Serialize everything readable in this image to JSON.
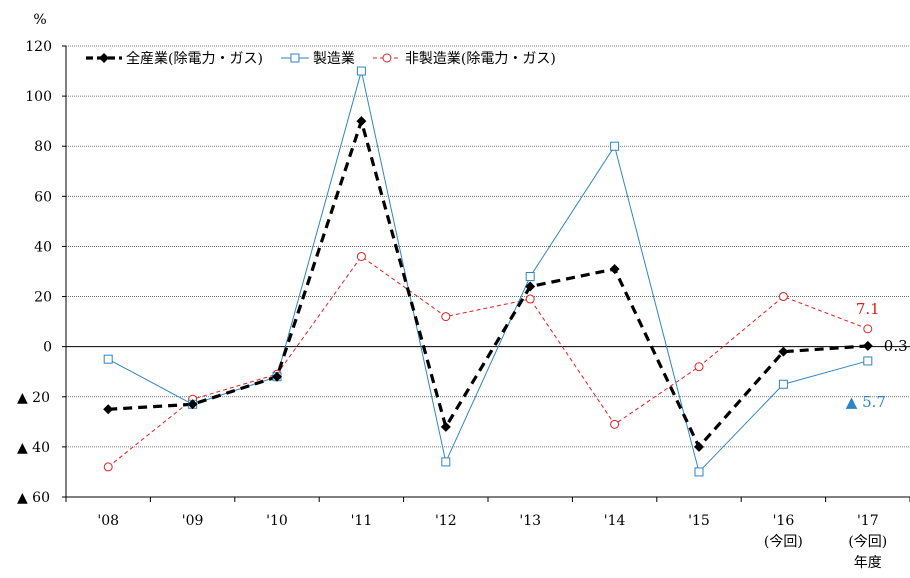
{
  "chart_data": {
    "type": "line",
    "y_unit": "%",
    "x_labels": [
      [
        "'08"
      ],
      [
        "'09"
      ],
      [
        "'10"
      ],
      [
        "'11"
      ],
      [
        "'12"
      ],
      [
        "'13"
      ],
      [
        "'14"
      ],
      [
        "'15"
      ],
      [
        "'16",
        "(今回)"
      ],
      [
        "'17",
        "(今回)",
        "年度"
      ]
    ],
    "y_ticks": [
      {
        "value": 120,
        "label": "120"
      },
      {
        "value": 100,
        "label": "100"
      },
      {
        "value": 80,
        "label": "80"
      },
      {
        "value": 60,
        "label": "60"
      },
      {
        "value": 40,
        "label": "40"
      },
      {
        "value": 20,
        "label": "20"
      },
      {
        "value": 0,
        "label": "0"
      },
      {
        "value": -20,
        "label": "▲ 20"
      },
      {
        "value": -40,
        "label": "▲ 40"
      },
      {
        "value": -60,
        "label": "▲ 60"
      }
    ],
    "ylim": [
      -60,
      120
    ],
    "grid": true,
    "legend_position": "top-left",
    "series": [
      {
        "name": "全産業(除電力・ガス)",
        "color": "#000000",
        "style": "dashed-bold",
        "marker": "diamond",
        "values": [
          -25,
          -23,
          -12,
          90,
          -32,
          24,
          31,
          -40,
          -2,
          0.3
        ]
      },
      {
        "name": "製造業",
        "color": "#2e86c1",
        "style": "solid",
        "marker": "square",
        "values": [
          -5,
          -23,
          -12,
          110,
          -46,
          28,
          80,
          -50,
          -15,
          -5.7
        ]
      },
      {
        "name": "非製造業(除電力・ガス)",
        "color": "#e02020",
        "style": "dashed-thin",
        "marker": "circle",
        "values": [
          -48,
          -21,
          -11,
          36,
          12,
          19,
          -31,
          -8,
          20,
          7.1
        ]
      }
    ],
    "annotations": [
      {
        "series": 0,
        "index": 9,
        "text": "0.3",
        "color": "#000000"
      },
      {
        "series": 1,
        "index": 9,
        "text": "▲ 5.7",
        "color": "#2e86c1"
      },
      {
        "series": 2,
        "index": 9,
        "text": "7.1",
        "color": "#e02020"
      }
    ]
  }
}
